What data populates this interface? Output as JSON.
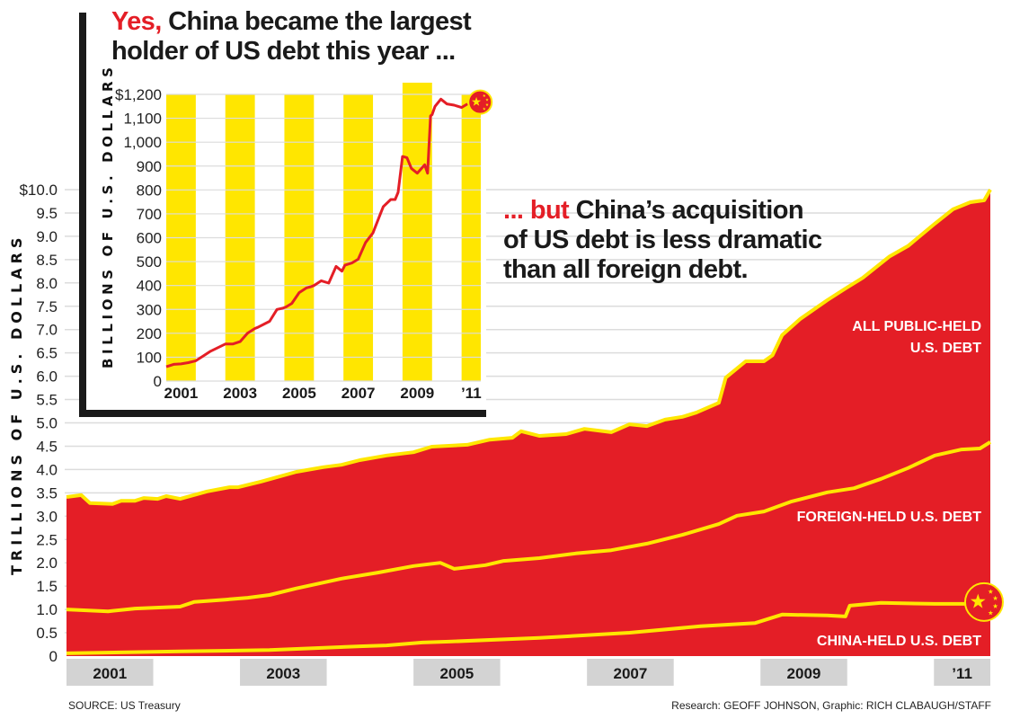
{
  "colors": {
    "fill_red": "#e41e26",
    "line_yellow": "#ffe600",
    "band_gray": "#d3d3d3",
    "grid": "#dcdcdc",
    "inset_bar": "#ffe600",
    "frame": "#1a1a1a"
  },
  "headline_top": {
    "lead": "Yes,",
    "rest_line1": " China became the largest",
    "line2": "holder of US debt this year ..."
  },
  "headline_mid": {
    "lead": "... but",
    "rest_line1": " China’s acquisition",
    "line2": "of US debt is less dramatic",
    "line3": "than all foreign debt."
  },
  "footer": {
    "source": "SOURCE: US Treasury",
    "credit": "Research: GEOFF JOHNSON, Graphic: RICH CLABAUGH/STAFF"
  },
  "chart_data": [
    {
      "type": "area",
      "title": "... but China’s acquisition of US debt is less dramatic than all foreign debt.",
      "ylabel": "TRILLIONS OF U.S. DOLLARS",
      "xlabel": "",
      "ylim": [
        0,
        10
      ],
      "xlim": [
        2001.0,
        2011.65
      ],
      "yticks": [
        "0",
        "0.5",
        "1.0",
        "1.5",
        "2.0",
        "2.5",
        "3.0",
        "3.5",
        "4.0",
        "4.5",
        "5.0",
        "5.5",
        "6.0",
        "6.5",
        "7.0",
        "7.5",
        "8.0",
        "8.5",
        "9.0",
        "9.5",
        "$10.0"
      ],
      "ytick_values": [
        0,
        0.5,
        1.0,
        1.5,
        2.0,
        2.5,
        3.0,
        3.5,
        4.0,
        4.5,
        5.0,
        5.5,
        6.0,
        6.5,
        7.0,
        7.5,
        8.0,
        8.5,
        9.0,
        9.5,
        10.0
      ],
      "xticks": [
        {
          "label": "2001",
          "start": 2001.0,
          "end": 2002.0
        },
        {
          "label": "2003",
          "start": 2003.0,
          "end": 2004.0
        },
        {
          "label": "2005",
          "start": 2005.0,
          "end": 2006.0
        },
        {
          "label": "2007",
          "start": 2007.0,
          "end": 2008.0
        },
        {
          "label": "2009",
          "start": 2009.0,
          "end": 2010.0
        },
        {
          "label": "’11",
          "start": 2011.0,
          "end": 2011.65
        }
      ],
      "grid": true,
      "series": [
        {
          "name": "ALL PUBLIC-HELD U.S. DEBT",
          "x": [
            2001.0,
            2001.17,
            2001.27,
            2001.53,
            2001.63,
            2001.79,
            2001.89,
            2002.05,
            2002.15,
            2002.31,
            2002.62,
            2002.88,
            2002.98,
            2003.24,
            2003.65,
            2003.96,
            2004.17,
            2004.38,
            2004.69,
            2005.0,
            2005.21,
            2005.62,
            2005.88,
            2006.14,
            2006.24,
            2006.45,
            2006.76,
            2006.97,
            2007.28,
            2007.49,
            2007.69,
            2007.9,
            2008.1,
            2008.26,
            2008.52,
            2008.6,
            2008.83,
            2009.04,
            2009.14,
            2009.25,
            2009.46,
            2009.77,
            2009.98,
            2010.18,
            2010.49,
            2010.7,
            2011.01,
            2011.22,
            2011.42,
            2011.58,
            2011.65
          ],
          "values": [
            3.41,
            3.45,
            3.28,
            3.26,
            3.33,
            3.33,
            3.39,
            3.37,
            3.43,
            3.37,
            3.53,
            3.62,
            3.62,
            3.74,
            3.95,
            4.05,
            4.1,
            4.2,
            4.3,
            4.37,
            4.49,
            4.53,
            4.64,
            4.68,
            4.82,
            4.72,
            4.76,
            4.87,
            4.8,
            4.97,
            4.93,
            5.07,
            5.13,
            5.22,
            5.43,
            5.97,
            6.32,
            6.32,
            6.45,
            6.88,
            7.23,
            7.63,
            7.88,
            8.11,
            8.57,
            8.79,
            9.27,
            9.58,
            9.73,
            9.77,
            10.0
          ]
        },
        {
          "name": "FOREIGN-HELD U.S. DEBT",
          "x": [
            2001.0,
            2001.48,
            2001.79,
            2002.31,
            2002.47,
            2002.83,
            2003.09,
            2003.34,
            2003.65,
            2004.17,
            2004.59,
            2005.0,
            2005.31,
            2005.47,
            2005.83,
            2006.04,
            2006.45,
            2006.87,
            2007.28,
            2007.69,
            2008.1,
            2008.52,
            2008.73,
            2009.04,
            2009.35,
            2009.77,
            2010.08,
            2010.39,
            2010.7,
            2011.01,
            2011.32,
            2011.53,
            2011.65
          ],
          "values": [
            1.0,
            0.96,
            1.02,
            1.06,
            1.16,
            1.21,
            1.25,
            1.31,
            1.45,
            1.66,
            1.79,
            1.93,
            2.0,
            1.87,
            1.95,
            2.04,
            2.1,
            2.2,
            2.27,
            2.41,
            2.6,
            2.83,
            3.01,
            3.1,
            3.31,
            3.51,
            3.6,
            3.8,
            4.03,
            4.3,
            4.43,
            4.45,
            4.59
          ]
        },
        {
          "name": "CHINA-HELD U.S. DEBT",
          "x": [
            2001.0,
            2002.31,
            2003.34,
            2004.38,
            2004.69,
            2005.1,
            2005.41,
            2006.45,
            2007.49,
            2008.31,
            2008.94,
            2009.25,
            2009.77,
            2009.98,
            2010.03,
            2010.39,
            2011.01,
            2011.37
          ],
          "values": [
            0.06,
            0.1,
            0.13,
            0.21,
            0.23,
            0.29,
            0.31,
            0.39,
            0.5,
            0.64,
            0.71,
            0.89,
            0.87,
            0.85,
            1.08,
            1.14,
            1.12,
            1.12
          ]
        }
      ],
      "annotations": [
        "ALL PUBLIC-HELD",
        "U.S. DEBT",
        "FOREIGN-HELD U.S. DEBT",
        "CHINA-HELD U.S. DEBT"
      ],
      "marker": "china-flag"
    },
    {
      "type": "line",
      "title": "Yes, China became the largest holder of US debt this year ...",
      "ylabel": "BILLIONS OF U.S. DOLLARS",
      "xlabel": "",
      "ylim": [
        0,
        1200
      ],
      "xlim": [
        2001.0,
        2011.65
      ],
      "yticks": [
        "0",
        "100",
        "200",
        "300",
        "400",
        "500",
        "600",
        "700",
        "800",
        "900",
        "1,000",
        "1,100",
        "$1,200"
      ],
      "ytick_values": [
        0,
        100,
        200,
        300,
        400,
        500,
        600,
        700,
        800,
        900,
        1000,
        1100,
        1200
      ],
      "xticks": [
        {
          "label": "2001",
          "start": 2001.0,
          "end": 2002.0
        },
        {
          "label": "2003",
          "start": 2003.0,
          "end": 2004.0
        },
        {
          "label": "2005",
          "start": 2005.0,
          "end": 2006.0
        },
        {
          "label": "2007",
          "start": 2007.0,
          "end": 2008.0
        },
        {
          "label": "2009",
          "start": 2009.0,
          "end": 2010.0
        },
        {
          "label": "’11",
          "start": 2011.0,
          "end": 2011.65
        }
      ],
      "grid": true,
      "series": [
        {
          "name": "China-held U.S. debt",
          "x": [
            2001.0,
            2001.25,
            2001.5,
            2001.75,
            2002.0,
            2002.25,
            2002.5,
            2002.75,
            2003.0,
            2003.25,
            2003.5,
            2003.75,
            2004.0,
            2004.1,
            2004.5,
            2004.75,
            2004.95,
            2005.05,
            2005.25,
            2005.5,
            2005.75,
            2005.9,
            2006.0,
            2006.25,
            2006.5,
            2006.75,
            2006.95,
            2007.05,
            2007.3,
            2007.5,
            2007.75,
            2008.0,
            2008.25,
            2008.35,
            2008.6,
            2008.75,
            2008.85,
            2009.0,
            2009.15,
            2009.3,
            2009.5,
            2009.75,
            2009.85,
            2009.95,
            2010.0,
            2010.1,
            2010.3,
            2010.5,
            2010.75,
            2011.0,
            2011.2
          ],
          "values": [
            60,
            70,
            72,
            77,
            85,
            105,
            125,
            140,
            155,
            155,
            165,
            200,
            220,
            225,
            250,
            300,
            305,
            310,
            325,
            370,
            390,
            395,
            400,
            420,
            410,
            480,
            460,
            485,
            495,
            510,
            580,
            620,
            700,
            730,
            760,
            760,
            790,
            940,
            935,
            890,
            870,
            905,
            870,
            1110,
            1115,
            1150,
            1180,
            1160,
            1155,
            1145,
            1160
          ]
        }
      ],
      "marker": "china-flag"
    }
  ]
}
